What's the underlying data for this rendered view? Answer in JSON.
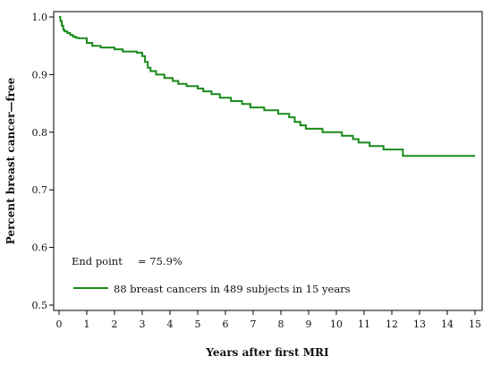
{
  "chart_data": {
    "type": "line",
    "xlabel": "Years after first MRI",
    "ylabel": "Percent breast cancer—free",
    "xlim": [
      0,
      15
    ],
    "ylim": [
      0.5,
      1.0
    ],
    "x_ticks": [
      "0",
      "1",
      "2",
      "3",
      "4",
      "5",
      "6",
      "7",
      "8",
      "9",
      "10",
      "11",
      "12",
      "13",
      "14",
      "15"
    ],
    "y_ticks": [
      "0.5",
      "0.6",
      "0.7",
      "0.8",
      "0.9",
      "1.0"
    ],
    "grid": false,
    "series_color": "#1a8a1a",
    "series": [
      {
        "name": "88 breast cancers in 489 subjects in 15 years",
        "step": true,
        "x": [
          0,
          0.05,
          0.1,
          0.15,
          0.2,
          0.3,
          0.4,
          0.5,
          0.6,
          0.7,
          1.0,
          1.2,
          1.5,
          2.0,
          2.3,
          2.8,
          3.0,
          3.1,
          3.2,
          3.3,
          3.5,
          3.8,
          4.1,
          4.3,
          4.6,
          5.0,
          5.2,
          5.5,
          5.8,
          6.2,
          6.6,
          6.9,
          7.4,
          7.9,
          8.3,
          8.5,
          8.7,
          8.9,
          9.5,
          10.2,
          10.6,
          10.8,
          11.2,
          11.7,
          12.4,
          15.0
        ],
        "y": [
          1.0,
          0.993,
          0.985,
          0.978,
          0.975,
          0.972,
          0.969,
          0.966,
          0.964,
          0.963,
          0.955,
          0.95,
          0.947,
          0.944,
          0.94,
          0.938,
          0.932,
          0.922,
          0.912,
          0.906,
          0.9,
          0.894,
          0.889,
          0.884,
          0.88,
          0.876,
          0.871,
          0.866,
          0.86,
          0.854,
          0.849,
          0.843,
          0.838,
          0.832,
          0.826,
          0.818,
          0.812,
          0.806,
          0.8,
          0.794,
          0.788,
          0.782,
          0.776,
          0.77,
          0.759,
          0.759
        ]
      }
    ],
    "annotations": {
      "endpoint_label": "End point",
      "endpoint_value": "= 75.9%"
    },
    "legend_placement": "bottom-left"
  }
}
